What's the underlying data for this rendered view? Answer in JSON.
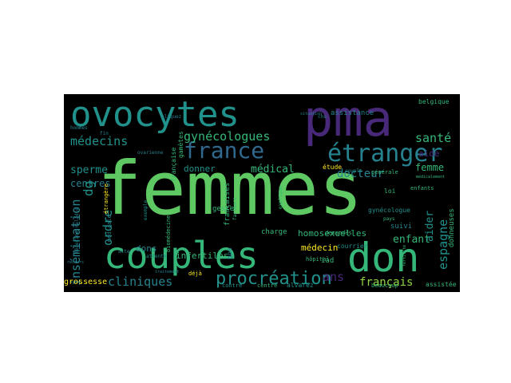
{
  "colors": {
    "background": "#000000",
    "palette": [
      "#5ec962",
      "#3b528b",
      "#21918c",
      "#440154",
      "#fde725",
      "#31688e",
      "#35b779",
      "#90d743",
      "#482878",
      "#26828e"
    ]
  },
  "words": [
    {
      "text": "femmes",
      "color": "#5ec962"
    },
    {
      "text": "pma",
      "color": "#482878"
    },
    {
      "text": "ovocytes",
      "color": "#21918c"
    },
    {
      "text": "couples",
      "color": "#35b779"
    },
    {
      "text": "don",
      "color": "#35b779"
    },
    {
      "text": "étranger",
      "color": "#26828e"
    },
    {
      "text": "france",
      "color": "#31688e"
    },
    {
      "text": "procréation",
      "color": "#21918c"
    },
    {
      "text": "cliniques",
      "color": "#26828e"
    },
    {
      "text": "médecins",
      "color": "#21918c"
    },
    {
      "text": "gynécologues",
      "color": "#35b779"
    },
    {
      "text": "insémination",
      "color": "#26828e"
    },
    {
      "text": "ordre",
      "color": "#21918c"
    },
    {
      "text": "sperme",
      "color": "#21918c"
    },
    {
      "text": "santé",
      "color": "#35b779"
    },
    {
      "text": "français",
      "color": "#90d743"
    },
    {
      "text": "espagne",
      "color": "#21918c"
    },
    {
      "text": "enfant",
      "color": "#35b779"
    },
    {
      "text": "docteur",
      "color": "#26828e"
    },
    {
      "text": "aide",
      "color": "#482878"
    },
    {
      "text": "aider",
      "color": "#21918c"
    },
    {
      "text": "femme",
      "color": "#35b779"
    },
    {
      "text": "médical",
      "color": "#35b779"
    },
    {
      "text": "donner",
      "color": "#21918c"
    },
    {
      "text": "centres",
      "color": "#26828e"
    },
    {
      "text": "dons",
      "color": "#26828e"
    },
    {
      "text": "ans",
      "color": "#482878"
    },
    {
      "text": "homosexuelles",
      "color": "#35b779"
    },
    {
      "text": "infertiles",
      "color": "#35b779"
    },
    {
      "text": "médecin",
      "color": "#fde725"
    },
    {
      "text": "grossesse",
      "color": "#fde725"
    },
    {
      "text": "belgique",
      "color": "#35b779"
    },
    {
      "text": "assistance",
      "color": "#26828e"
    },
    {
      "text": "gynécologue",
      "color": "#21918c"
    },
    {
      "text": "suivi",
      "color": "#26828e"
    },
    {
      "text": "loi",
      "color": "#35b779"
    },
    {
      "text": "enfants",
      "color": "#35b779"
    },
    {
      "text": "générale",
      "color": "#35b779"
    },
    {
      "text": "étude",
      "color": "#fde725"
    },
    {
      "text": "charge",
      "color": "#35b779"
    },
    {
      "text": "geste",
      "color": "#35b779"
    },
    {
      "text": "iad",
      "color": "#35b779"
    },
    {
      "text": "hôpital",
      "color": "#35b779"
    },
    {
      "text": "courrier",
      "color": "#21918c"
    },
    {
      "text": "demandes",
      "color": "#35b779"
    },
    {
      "text": "donneuses",
      "color": "#35b779"
    },
    {
      "text": "assistée",
      "color": "#35b779"
    },
    {
      "text": "beaucoup",
      "color": "#35b779"
    },
    {
      "text": "alvarez",
      "color": "#21918c"
    },
    {
      "text": "centre",
      "color": "#35b779"
    },
    {
      "text": "contre",
      "color": "#21918c"
    },
    {
      "text": "déjà",
      "color": "#fde725"
    },
    {
      "text": "dg",
      "color": "#21918c"
    },
    {
      "text": "gpa",
      "color": "#26828e"
    },
    {
      "text": "françaises",
      "color": "#35b779"
    },
    {
      "text": "française",
      "color": "#35b779"
    },
    {
      "text": "gamètes",
      "color": "#35b779"
    },
    {
      "text": "biomédecine",
      "color": "#35b779"
    },
    {
      "text": "médicale",
      "color": "#26828e"
    },
    {
      "text": "étrangère",
      "color": "#fde725"
    },
    {
      "text": "pays",
      "color": "#35b779"
    },
    {
      "text": "hommes",
      "color": "#26828e"
    },
    {
      "text": "fin",
      "color": "#26828e"
    },
    {
      "text": "chu",
      "color": "#26828e"
    },
    {
      "text": "cliquez",
      "color": "#26828e"
    },
    {
      "text": "ovarienne",
      "color": "#26828e"
    },
    {
      "text": "attente",
      "color": "#21918c"
    },
    {
      "text": "acte",
      "color": "#26828e"
    },
    {
      "text": "explique",
      "color": "#35b779"
    },
    {
      "text": "facteurs",
      "color": "#35b779"
    },
    {
      "text": "médecine maladie",
      "color": "#26828e"
    },
    {
      "text": "exemple",
      "color": "#21918c"
    },
    {
      "text": "situation",
      "color": "#26828e"
    },
    {
      "text": "couple",
      "color": "#21918c"
    },
    {
      "text": "médicalement",
      "color": "#35b779"
    },
    {
      "text": "fertilité",
      "color": "#35b779"
    },
    {
      "text": "recours",
      "color": "#26828e"
    },
    {
      "text": "traitement",
      "color": "#26828e"
    }
  ]
}
